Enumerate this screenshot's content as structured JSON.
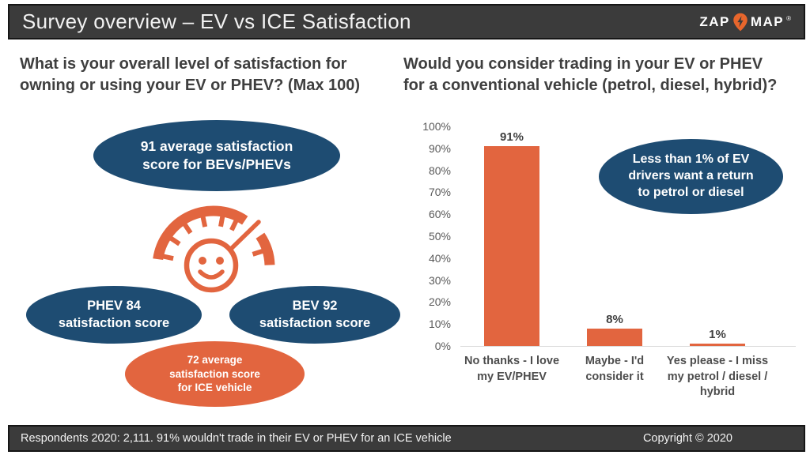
{
  "colors": {
    "orange": "#E2653F",
    "blue": "#1E4C72",
    "bar_bg": "#3B3B3B",
    "bar_border": "#161616",
    "heading": "#3F3F3F",
    "axis_text": "#595959",
    "xlabel_text": "#4D4D4D",
    "baseline": "#DCDCDC"
  },
  "header": {
    "title": "Survey overview – EV vs ICE Satisfaction",
    "logo": {
      "zap": "ZAP",
      "map": "MAP",
      "registered": "®"
    }
  },
  "left_panel": {
    "heading": "What is your overall level of satisfaction for\nowning or using your EV or PHEV? (Max 100)",
    "bubble_top": "91 average satisfaction\nscore for BEVs/PHEVs",
    "bubble_left": "PHEV 84\nsatisfaction score",
    "bubble_right": "BEV 92\nsatisfaction score",
    "bubble_bottom": "72 average\nsatisfaction score\nfor ICE vehicle"
  },
  "right_panel": {
    "heading": "Would you consider trading in your EV or PHEV\nfor a conventional vehicle (petrol, diesel, hybrid)?",
    "callout": "Less than 1% of EV\ndrivers want a return\nto petrol or diesel"
  },
  "chart_data": {
    "type": "bar",
    "title": "Would you consider trading in your EV or PHEV for a conventional vehicle (petrol, diesel, hybrid)?",
    "categories": [
      "No thanks - I love my EV/PHEV",
      "Maybe - I'd consider it",
      "Yes please - I miss my petrol / diesel / hybrid"
    ],
    "values": [
      91,
      8,
      1
    ],
    "value_labels": [
      "91%",
      "8%",
      "1%"
    ],
    "xtick_labels": [
      "No thanks - I love\nmy EV/PHEV",
      "Maybe - I'd\nconsider it",
      "Yes please - I miss\nmy petrol / diesel /\nhybrid"
    ],
    "ytick_labels": [
      "0%",
      "10%",
      "20%",
      "30%",
      "40%",
      "50%",
      "60%",
      "70%",
      "80%",
      "90%",
      "100%"
    ],
    "ylim": [
      0,
      100
    ],
    "xlabel": "",
    "ylabel": "",
    "grid": false,
    "legend": false,
    "bar_color": "#E2653F"
  },
  "footer": {
    "left": "Respondents 2020: 2,111. 91% wouldn't trade in their EV or PHEV for an ICE vehicle",
    "right": "Copyright © 2020"
  }
}
